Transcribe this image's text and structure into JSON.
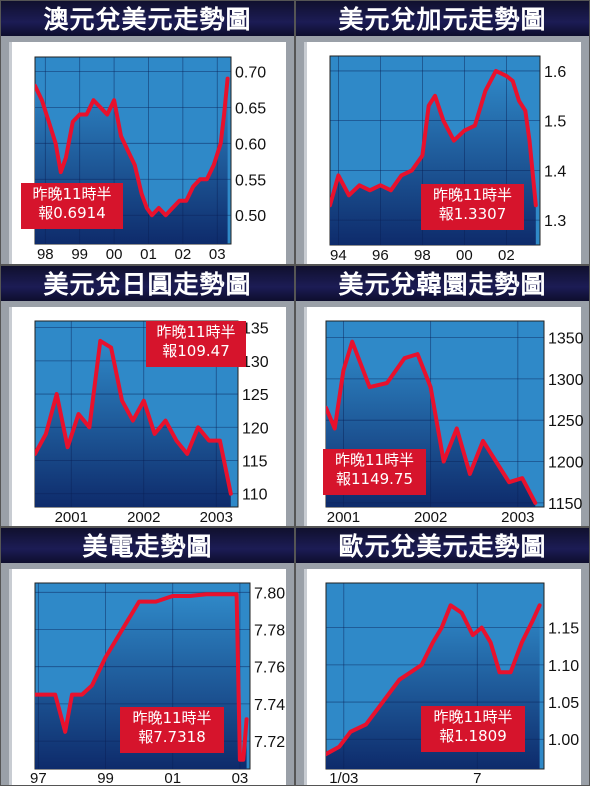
{
  "quote_prefix": "昨晚11時半",
  "colors": {
    "plot_top": "#2f89c8",
    "plot_bottom": "#0e2b6b",
    "line": "#e8112d",
    "title_bg": "#14143e",
    "quote_bg": "#d6142c"
  },
  "chart_data": [
    {
      "type": "area",
      "title": "澳元兌美元走勢圖",
      "quote": "報0.6914",
      "ylim": [
        0.46,
        0.72
      ],
      "yticks": [
        0.7,
        0.65,
        0.6,
        0.55,
        0.5
      ],
      "ytick_labels": [
        "0.70",
        "0.65",
        "0.60",
        "0.55",
        "0.50"
      ],
      "xlim": [
        1997.7,
        2003.4
      ],
      "xticks": [
        1998,
        1999,
        2000,
        2001,
        2002,
        2003
      ],
      "xtick_labels": [
        "98",
        "99",
        "00",
        "01",
        "02",
        "03"
      ],
      "x": [
        1997.7,
        1997.9,
        1998.1,
        1998.3,
        1998.45,
        1998.6,
        1998.8,
        1999.0,
        1999.2,
        1999.4,
        1999.6,
        1999.8,
        2000.0,
        2000.2,
        2000.4,
        2000.6,
        2000.8,
        2000.95,
        2001.1,
        2001.3,
        2001.5,
        2001.7,
        2001.9,
        2002.1,
        2002.3,
        2002.5,
        2002.7,
        2002.9,
        2003.1,
        2003.2,
        2003.3
      ],
      "y": [
        0.68,
        0.66,
        0.63,
        0.6,
        0.56,
        0.58,
        0.63,
        0.64,
        0.64,
        0.66,
        0.65,
        0.64,
        0.66,
        0.61,
        0.59,
        0.57,
        0.53,
        0.51,
        0.5,
        0.51,
        0.5,
        0.51,
        0.52,
        0.52,
        0.54,
        0.55,
        0.55,
        0.57,
        0.6,
        0.64,
        0.69
      ]
    },
    {
      "type": "area",
      "title": "美元兌加元走勢圖",
      "quote": "報1.3307",
      "ylim": [
        1.25,
        1.63
      ],
      "yticks": [
        1.6,
        1.5,
        1.4,
        1.3
      ],
      "ytick_labels": [
        "1.6",
        "1.5",
        "1.4",
        "1.3"
      ],
      "xlim": [
        1993.6,
        2003.6
      ],
      "xticks": [
        1994,
        1996,
        1998,
        2000,
        2002
      ],
      "xtick_labels": [
        "94",
        "96",
        "98",
        "00",
        "02"
      ],
      "x": [
        1993.6,
        1994.0,
        1994.5,
        1995.0,
        1995.5,
        1996.0,
        1996.5,
        1997.0,
        1997.5,
        1998.0,
        1998.3,
        1998.6,
        1999.0,
        1999.5,
        2000.0,
        2000.5,
        2001.0,
        2001.5,
        2002.0,
        2002.3,
        2002.6,
        2002.9,
        2003.1,
        2003.4
      ],
      "y": [
        1.33,
        1.39,
        1.35,
        1.37,
        1.36,
        1.37,
        1.36,
        1.39,
        1.4,
        1.43,
        1.53,
        1.55,
        1.5,
        1.46,
        1.48,
        1.49,
        1.56,
        1.6,
        1.59,
        1.58,
        1.54,
        1.52,
        1.46,
        1.33
      ]
    },
    {
      "type": "area",
      "title": "美元兌日圓走勢圖",
      "quote": "報109.47",
      "ylim": [
        108,
        136
      ],
      "yticks": [
        135,
        130,
        125,
        120,
        115,
        110
      ],
      "ytick_labels": [
        "135",
        "130",
        "125",
        "120",
        "115",
        "110"
      ],
      "xlim": [
        2000.5,
        2003.3
      ],
      "xticks": [
        2001,
        2002,
        2003
      ],
      "xtick_labels": [
        "2001",
        "2002",
        "2003"
      ],
      "x": [
        2000.5,
        2000.65,
        2000.8,
        2000.95,
        2001.1,
        2001.25,
        2001.4,
        2001.55,
        2001.7,
        2001.85,
        2002.0,
        2002.15,
        2002.3,
        2002.45,
        2002.6,
        2002.75,
        2002.9,
        2003.05,
        2003.2
      ],
      "y": [
        116,
        119,
        125,
        117,
        122,
        120,
        133,
        132,
        124,
        121,
        124,
        119,
        121,
        118,
        116,
        120,
        118,
        118,
        110
      ]
    },
    {
      "type": "area",
      "title": "美元兌韓圜走勢圖",
      "quote": "報1149.75",
      "ylim": [
        1145,
        1370
      ],
      "yticks": [
        1350,
        1300,
        1250,
        1200,
        1150
      ],
      "ytick_labels": [
        "1350",
        "1300",
        "1250",
        "1200",
        "1150"
      ],
      "xlim": [
        2000.8,
        2003.3
      ],
      "xticks": [
        2001,
        2002,
        2003
      ],
      "xtick_labels": [
        "2001",
        "2002",
        "2003"
      ],
      "x": [
        2000.8,
        2000.9,
        2001.0,
        2001.1,
        2001.3,
        2001.5,
        2001.7,
        2001.85,
        2002.0,
        2002.15,
        2002.3,
        2002.45,
        2002.6,
        2002.75,
        2002.9,
        2003.05,
        2003.2
      ],
      "y": [
        1265,
        1240,
        1310,
        1345,
        1290,
        1295,
        1325,
        1330,
        1290,
        1200,
        1240,
        1185,
        1225,
        1200,
        1175,
        1180,
        1150
      ]
    },
    {
      "type": "area",
      "title": "美電走勢圖",
      "quote": "報7.7318",
      "ylim": [
        7.705,
        7.805
      ],
      "yticks": [
        7.8,
        7.78,
        7.76,
        7.74,
        7.72
      ],
      "ytick_labels": [
        "7.80",
        "7.78",
        "7.76",
        "7.74",
        "7.72"
      ],
      "xlim": [
        1996.9,
        2003.3
      ],
      "xticks": [
        1997,
        1999,
        2001,
        2003
      ],
      "xtick_labels": [
        "97",
        "99",
        "01",
        "03"
      ],
      "x": [
        1996.9,
        1997.5,
        1997.8,
        1998.0,
        1998.3,
        1998.6,
        1999.0,
        1999.5,
        2000.0,
        2000.5,
        2001.0,
        2001.5,
        2002.0,
        2002.5,
        2002.9,
        2003.0,
        2003.1,
        2003.2
      ],
      "y": [
        7.745,
        7.745,
        7.725,
        7.745,
        7.745,
        7.75,
        7.765,
        7.78,
        7.795,
        7.795,
        7.798,
        7.798,
        7.799,
        7.799,
        7.799,
        7.71,
        7.71,
        7.7318
      ]
    },
    {
      "type": "area",
      "title": "歐元兌美元走勢圖",
      "quote": "報1.1809",
      "ylim": [
        0.96,
        1.21
      ],
      "yticks": [
        1.15,
        1.1,
        1.05,
        1.0
      ],
      "ytick_labels": [
        "1.15",
        "1.10",
        "1.05",
        "1.00"
      ],
      "xlim": [
        0.2,
        10.0
      ],
      "xticks": [
        1,
        7
      ],
      "xtick_labels": [
        "1/03",
        "7"
      ],
      "x": [
        0.2,
        0.8,
        1.3,
        2.0,
        2.5,
        3.0,
        3.5,
        4.0,
        4.5,
        5.0,
        5.4,
        5.8,
        6.3,
        6.8,
        7.2,
        7.6,
        8.0,
        8.5,
        9.0,
        9.5,
        9.8
      ],
      "y": [
        0.98,
        0.99,
        1.01,
        1.02,
        1.04,
        1.06,
        1.08,
        1.09,
        1.1,
        1.13,
        1.15,
        1.18,
        1.17,
        1.14,
        1.15,
        1.13,
        1.09,
        1.09,
        1.13,
        1.16,
        1.18
      ]
    }
  ]
}
